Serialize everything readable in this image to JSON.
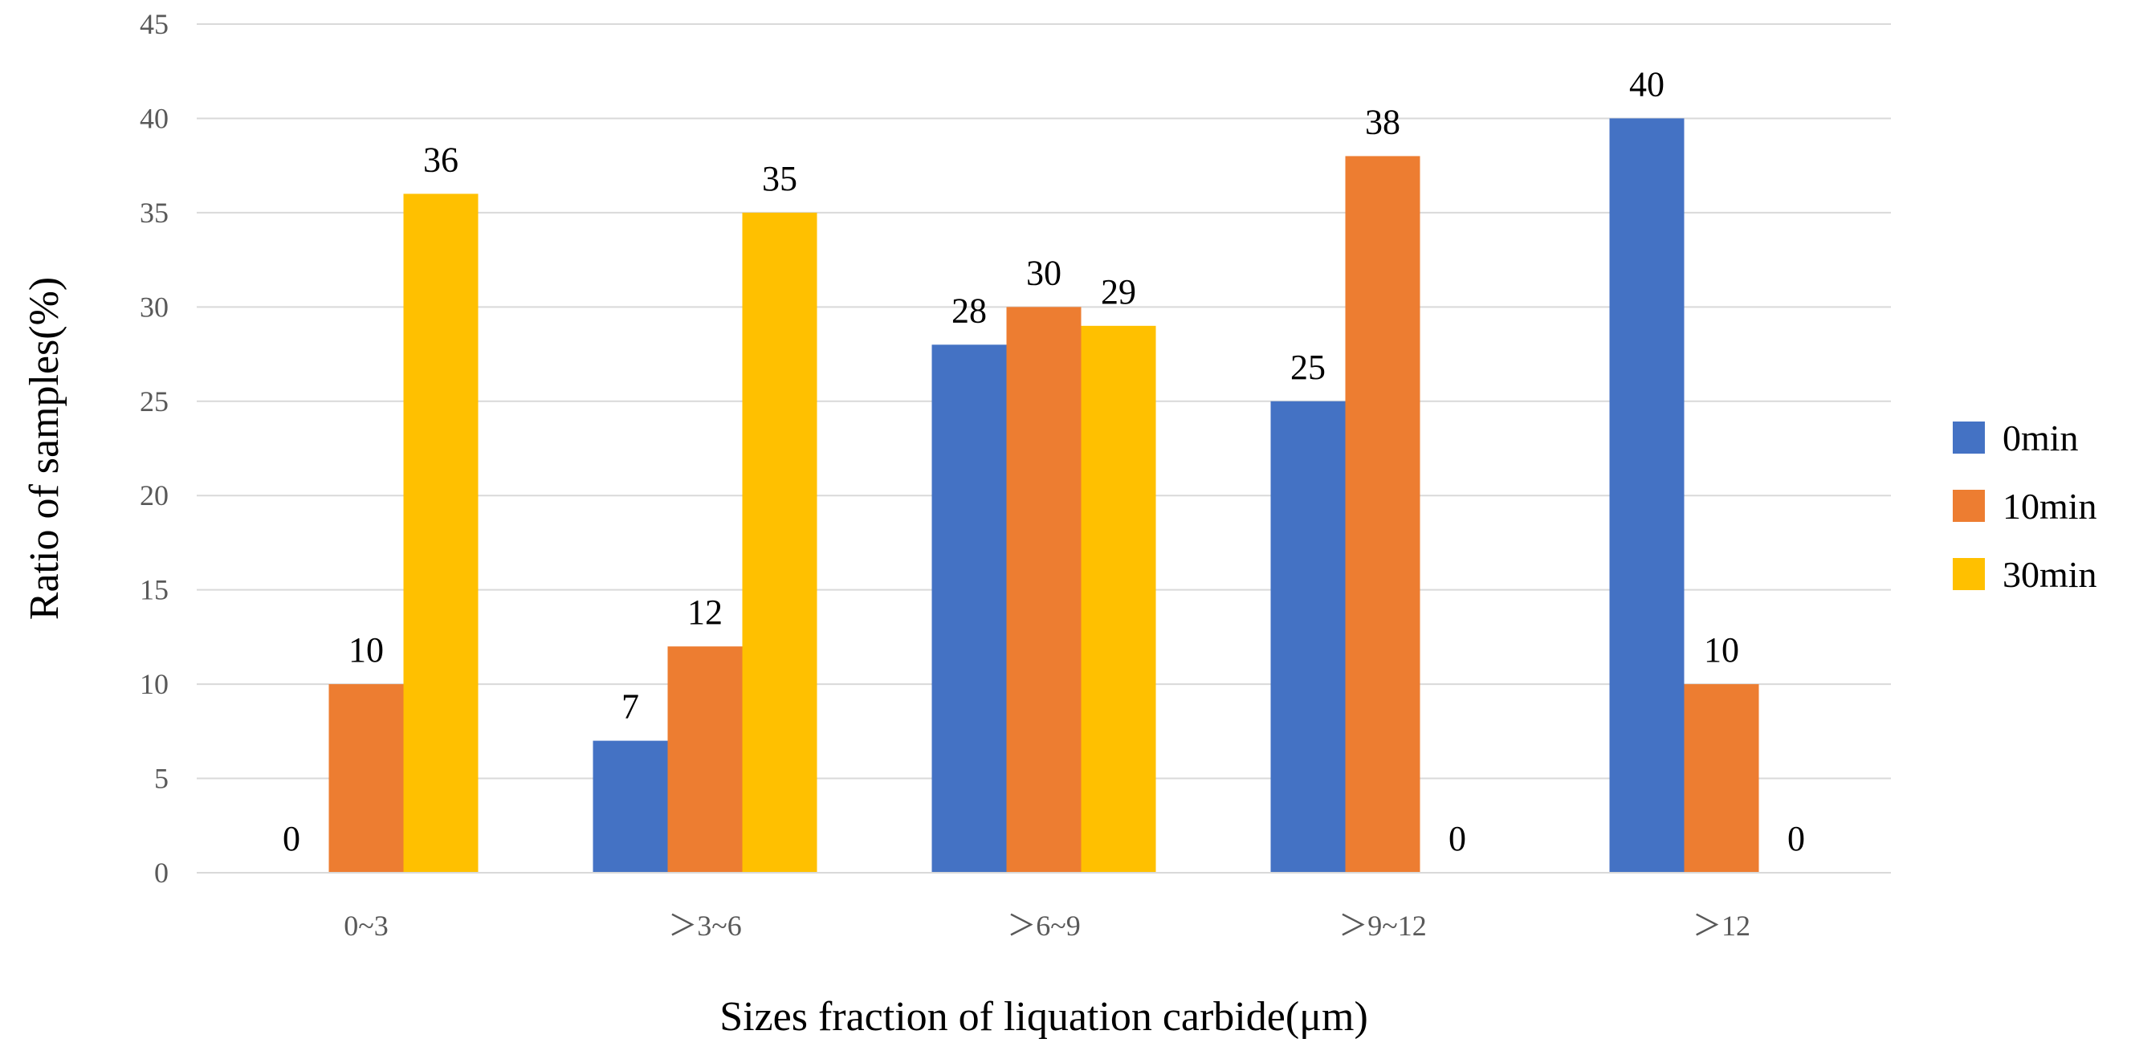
{
  "chart_data": {
    "type": "bar",
    "title": "",
    "xlabel": "Sizes fraction of liquation carbide(μm)",
    "ylabel": "Ratio of samples(%)",
    "ylim": [
      0,
      45
    ],
    "yticks": [
      0,
      5,
      10,
      15,
      20,
      25,
      30,
      35,
      40,
      45
    ],
    "grid": true,
    "legend_position": "right",
    "categories": [
      "0~3",
      "＞3~6",
      "＞6~9",
      "＞9~12",
      "＞12"
    ],
    "series": [
      {
        "name": "0min",
        "color": "#4472C4",
        "values": [
          0,
          7,
          28,
          25,
          40
        ]
      },
      {
        "name": "10min",
        "color": "#ED7D31",
        "values": [
          10,
          12,
          30,
          38,
          10
        ]
      },
      {
        "name": "30min",
        "color": "#FFC000",
        "values": [
          36,
          35,
          29,
          0,
          0
        ]
      }
    ]
  }
}
